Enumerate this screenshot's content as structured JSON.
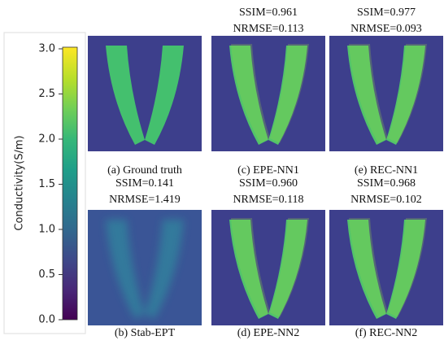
{
  "colorbar": {
    "label": "Conductivity(S/m)",
    "ticks": [
      "3.0",
      "2.5",
      "2.0",
      "1.5",
      "1.0",
      "0.5",
      "0.0"
    ]
  },
  "panels": [
    {
      "caption": "(a) Ground truth",
      "metrics": []
    },
    {
      "caption": "(c) EPE-NN1",
      "metrics": [
        "SSIM=0.961",
        "NRMSE=0.113"
      ]
    },
    {
      "caption": "(e) REC-NN1",
      "metrics": [
        "SSIM=0.977",
        "NRMSE=0.093"
      ]
    },
    {
      "caption": "(b) Stab-EPT",
      "metrics": [
        "SSIM=0.141",
        "NRMSE=1.419"
      ]
    },
    {
      "caption": "(d) EPE-NN2",
      "metrics": [
        "SSIM=0.960",
        "NRMSE=0.118"
      ]
    },
    {
      "caption": "(f) REC-NN2",
      "metrics": [
        "SSIM=0.968",
        "NRMSE=0.102"
      ]
    }
  ]
}
